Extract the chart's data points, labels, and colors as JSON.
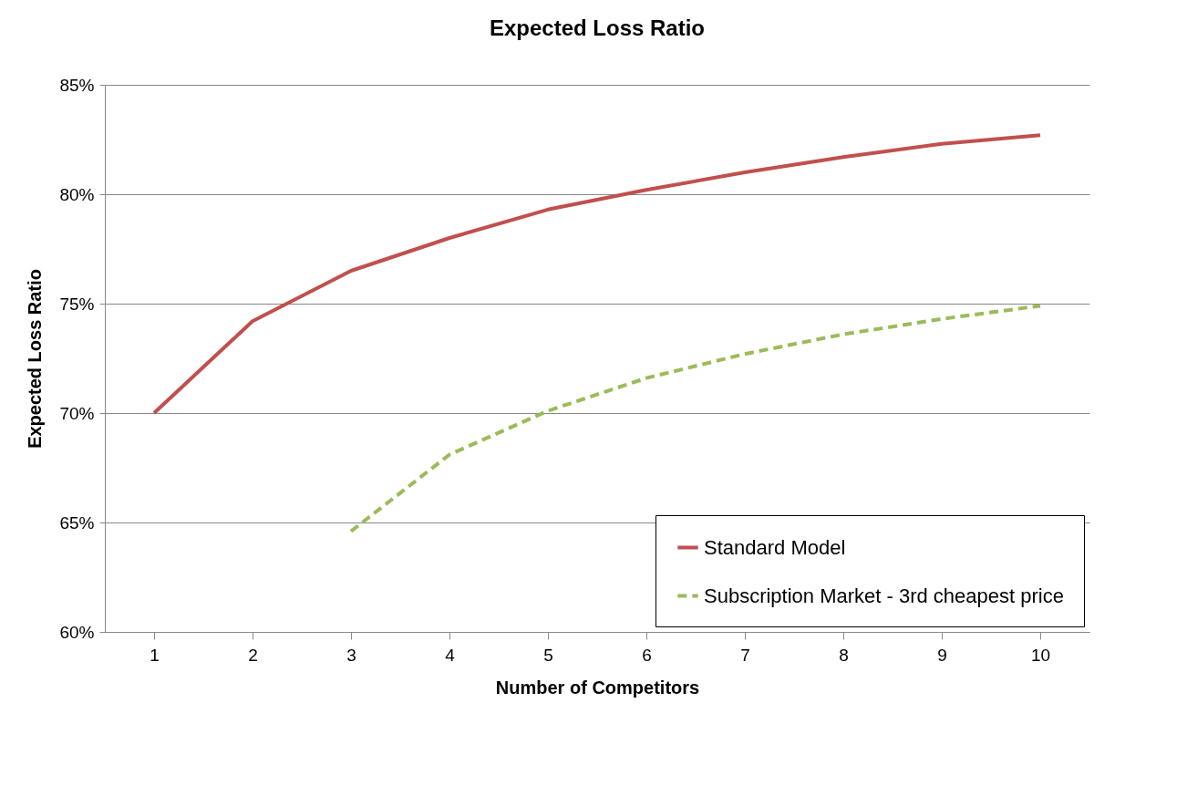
{
  "chart_data": {
    "type": "line",
    "title": "Expected Loss Ratio",
    "xlabel": "Number of Competitors",
    "ylabel": "Expected Loss Ratio",
    "categories": [
      "1",
      "2",
      "3",
      "4",
      "5",
      "6",
      "7",
      "8",
      "9",
      "10"
    ],
    "series": [
      {
        "name": "Standard Model",
        "color": "#c0504d",
        "line_style": "solid",
        "values": [
          70.0,
          74.2,
          76.5,
          78.0,
          79.3,
          80.2,
          81.0,
          81.7,
          82.3,
          82.7
        ]
      },
      {
        "name": "Subscription Market - 3rd cheapest price",
        "color": "#9bbb59",
        "line_style": "dashed",
        "values": [
          null,
          null,
          64.6,
          68.1,
          70.1,
          71.6,
          72.7,
          73.6,
          74.3,
          74.9
        ]
      }
    ],
    "ylim": [
      60,
      85
    ],
    "yticks": [
      {
        "value": 60,
        "label": "60%"
      },
      {
        "value": 65,
        "label": "65%"
      },
      {
        "value": 70,
        "label": "70%"
      },
      {
        "value": 75,
        "label": "75%"
      },
      {
        "value": 80,
        "label": "80%"
      },
      {
        "value": 85,
        "label": "85%"
      }
    ],
    "grid": "y",
    "legend": "bottom right",
    "marker": "none"
  }
}
